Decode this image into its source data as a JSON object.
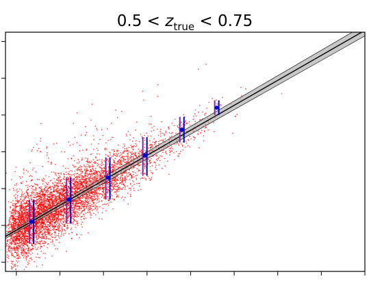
{
  "chart_data": {
    "type": "scatter",
    "title": "0.5 < z_true < 0.75",
    "title_main": "0.5 < ",
    "title_var": "z",
    "title_sub": "true",
    "title_end": " < 0.75",
    "xlabel": "",
    "ylabel": "",
    "xlim": [
      0.05,
      1.7
    ],
    "ylim": [
      -0.25,
      1.05
    ],
    "x_ticks": [
      0.1,
      0.3,
      0.5,
      0.7,
      0.9,
      1.1,
      1.3,
      1.5,
      1.7
    ],
    "y_ticks": [
      -0.2,
      0.0,
      0.2,
      0.4,
      0.6,
      0.8,
      1.0
    ],
    "tick_labels_visible": false,
    "grid": false,
    "scatter": {
      "name": "",
      "color": "#ff0000",
      "approx_count": 6000,
      "note_density": "dense cloud at low x, thinning at high x"
    },
    "binned_points": {
      "color": "#0000cc",
      "purple_color": "#7a2aa8",
      "x": [
        0.17,
        0.34,
        0.52,
        0.69,
        0.86,
        1.02
      ],
      "y": [
        0.02,
        0.14,
        0.26,
        0.38,
        0.52,
        0.64
      ],
      "yerr_upper": [
        0.12,
        0.12,
        0.11,
        0.1,
        0.07,
        0.04
      ],
      "yerr_lower": [
        0.12,
        0.13,
        0.12,
        0.11,
        0.07,
        0.04
      ]
    },
    "fit_line": {
      "color": "#000000",
      "band_color": "#999999",
      "x": [
        0.05,
        1.7
      ],
      "y": [
        -0.06,
        1.06
      ]
    }
  }
}
